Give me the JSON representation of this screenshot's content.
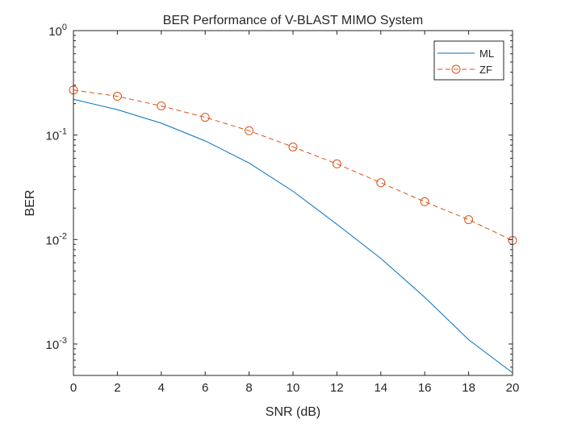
{
  "chart_data": {
    "type": "line",
    "title": "BER Performance of V-BLAST MIMO System",
    "xlabel": "SNR (dB)",
    "ylabel": "BER",
    "yscale": "log",
    "xlim": [
      0,
      20
    ],
    "ylim": [
      0.0005,
      1
    ],
    "xticks": [
      0,
      2,
      4,
      6,
      8,
      10,
      12,
      14,
      16,
      18,
      20
    ],
    "xtick_labels": [
      "0",
      "2",
      "4",
      "6",
      "8",
      "10",
      "12",
      "14",
      "16",
      "18",
      "20"
    ],
    "yticks": [
      {
        "value": 1,
        "base": "10",
        "exp": "0"
      },
      {
        "value": 0.1,
        "base": "10",
        "exp": "-1"
      },
      {
        "value": 0.01,
        "base": "10",
        "exp": "-2"
      },
      {
        "value": 0.001,
        "base": "10",
        "exp": "-3"
      }
    ],
    "grid": false,
    "legend_position": "top-right",
    "x": [
      0,
      2,
      4,
      6,
      8,
      10,
      12,
      14,
      16,
      18,
      20
    ],
    "series": [
      {
        "name": "ML",
        "color": "#0072bd",
        "line_style": "solid",
        "marker": "none",
        "values": [
          0.22,
          0.175,
          0.13,
          0.088,
          0.054,
          0.029,
          0.014,
          0.0066,
          0.0028,
          0.0011,
          0.00053
        ]
      },
      {
        "name": "ZF",
        "color": "#d95319",
        "line_style": "dashed",
        "marker": "circle",
        "values": [
          0.27,
          0.235,
          0.19,
          0.148,
          0.11,
          0.077,
          0.053,
          0.035,
          0.023,
          0.0155,
          0.0098
        ]
      }
    ]
  }
}
